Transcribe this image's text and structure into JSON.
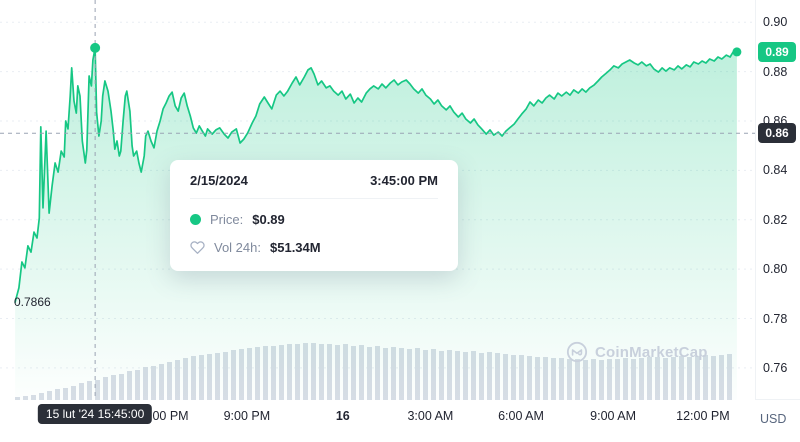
{
  "colors": {
    "accent_green": "#16c784",
    "badge_dark": "#2b2f38",
    "text_primary": "#222531",
    "text_secondary": "#808a9d",
    "gridline": "#e9edf3",
    "volume_bar": "#d8dde6",
    "watermark": "#c8d0dc",
    "crosshair": "#9aa3b3"
  },
  "tooltip": {
    "date": "2/15/2024",
    "time": "3:45:00 PM",
    "price_label": "Price:",
    "price_value": "$0.89",
    "vol_label": "Vol 24h:",
    "vol_value": "$51.34M"
  },
  "badges": {
    "current_price": "0.89",
    "hover_price": "0.86",
    "hover_time": "15 lut '24 15:45:00"
  },
  "axis": {
    "currency": "USD"
  },
  "annotations": {
    "low_label": "0.7866"
  },
  "watermark": {
    "text": "CoinMarketCap"
  },
  "chart_data": {
    "type": "line",
    "ylabel": "Price (USD)",
    "xlabel": "Time",
    "ylim": [
      0.747,
      0.909
    ],
    "grid": "dotted-horizontal",
    "legend": "none",
    "y_axis": {
      "ticks": [
        {
          "label": "0.90",
          "price": 0.9
        },
        {
          "label": "0.88",
          "price": 0.88
        },
        {
          "label": "0.86",
          "price": 0.86
        },
        {
          "label": "0.84",
          "price": 0.84
        },
        {
          "label": "0.82",
          "price": 0.82
        },
        {
          "label": "0.80",
          "price": 0.8
        },
        {
          "label": "0.78",
          "price": 0.78
        },
        {
          "label": "0.76",
          "price": 0.76
        }
      ]
    },
    "x_axis": {
      "labels": [
        {
          "label": "6:00 PM",
          "x_pct": 21.9,
          "bold": false
        },
        {
          "label": "9:00 PM",
          "x_pct": 32.7,
          "bold": false
        },
        {
          "label": "16",
          "x_pct": 45.4,
          "bold": true
        },
        {
          "label": "3:00 AM",
          "x_pct": 57.0,
          "bold": false
        },
        {
          "label": "6:00 AM",
          "x_pct": 69.0,
          "bold": false
        },
        {
          "label": "9:00 AM",
          "x_pct": 81.2,
          "bold": false
        },
        {
          "label": "12:00 PM",
          "x_pct": 93.1,
          "bold": false
        }
      ]
    },
    "crosshair": {
      "x_pct": 12.6,
      "price_at_cursor": 0.855,
      "hover_point_price": 0.8896
    },
    "end_point": {
      "x_pct": 97.6,
      "price": 0.888
    },
    "low_annotation": {
      "x_pct": 2.0,
      "price": 0.7866
    },
    "series": [
      {
        "name": "price",
        "unit": "USD",
        "points": [
          [
            2.0,
            0.7866
          ],
          [
            2.5,
            0.7924
          ],
          [
            2.9,
            0.8029
          ],
          [
            3.3,
            0.8005
          ],
          [
            3.7,
            0.8094
          ],
          [
            4.1,
            0.8069
          ],
          [
            4.5,
            0.815
          ],
          [
            4.9,
            0.8126
          ],
          [
            5.2,
            0.8207
          ],
          [
            5.4,
            0.8576
          ],
          [
            5.7,
            0.8248
          ],
          [
            6.1,
            0.8559
          ],
          [
            6.5,
            0.8227
          ],
          [
            6.9,
            0.8337
          ],
          [
            7.3,
            0.843
          ],
          [
            7.7,
            0.8393
          ],
          [
            8.1,
            0.8478
          ],
          [
            8.5,
            0.8454
          ],
          [
            8.7,
            0.86
          ],
          [
            9.0,
            0.8568
          ],
          [
            9.3,
            0.8701
          ],
          [
            9.5,
            0.8815
          ],
          [
            9.8,
            0.8681
          ],
          [
            10.1,
            0.8632
          ],
          [
            10.3,
            0.8742
          ],
          [
            10.6,
            0.8701
          ],
          [
            10.9,
            0.8519
          ],
          [
            11.3,
            0.843
          ],
          [
            11.5,
            0.8483
          ],
          [
            11.8,
            0.8782
          ],
          [
            12.1,
            0.8742
          ],
          [
            12.3,
            0.8847
          ],
          [
            12.6,
            0.8896
          ],
          [
            12.8,
            0.8636
          ],
          [
            13.1,
            0.8539
          ],
          [
            13.4,
            0.86
          ],
          [
            13.6,
            0.8701
          ],
          [
            13.9,
            0.8762
          ],
          [
            14.3,
            0.8721
          ],
          [
            14.7,
            0.864
          ],
          [
            15.0,
            0.8559
          ],
          [
            15.2,
            0.8486
          ],
          [
            15.5,
            0.8519
          ],
          [
            15.8,
            0.8458
          ],
          [
            16.0,
            0.8478
          ],
          [
            16.3,
            0.86
          ],
          [
            16.6,
            0.8701
          ],
          [
            16.8,
            0.8721
          ],
          [
            17.2,
            0.864
          ],
          [
            17.5,
            0.8499
          ],
          [
            17.7,
            0.8458
          ],
          [
            18.1,
            0.8478
          ],
          [
            18.4,
            0.843
          ],
          [
            18.7,
            0.8393
          ],
          [
            19.1,
            0.8458
          ],
          [
            19.3,
            0.8539
          ],
          [
            19.6,
            0.8559
          ],
          [
            20.0,
            0.8519
          ],
          [
            20.4,
            0.8491
          ],
          [
            20.8,
            0.8559
          ],
          [
            21.2,
            0.86
          ],
          [
            21.6,
            0.8649
          ],
          [
            22.0,
            0.8673
          ],
          [
            22.4,
            0.8701
          ],
          [
            22.8,
            0.8717
          ],
          [
            23.2,
            0.8661
          ],
          [
            23.6,
            0.864
          ],
          [
            24.0,
            0.8693
          ],
          [
            24.4,
            0.8713
          ],
          [
            24.8,
            0.8661
          ],
          [
            25.2,
            0.862
          ],
          [
            25.6,
            0.8572
          ],
          [
            26.0,
            0.8551
          ],
          [
            26.4,
            0.858
          ],
          [
            26.8,
            0.8559
          ],
          [
            27.2,
            0.8539
          ],
          [
            27.5,
            0.8568
          ],
          [
            28.1,
            0.8547
          ],
          [
            28.6,
            0.8564
          ],
          [
            29.1,
            0.8572
          ],
          [
            29.7,
            0.8547
          ],
          [
            30.2,
            0.8531
          ],
          [
            30.7,
            0.8555
          ],
          [
            31.3,
            0.8568
          ],
          [
            31.8,
            0.8511
          ],
          [
            32.3,
            0.8527
          ],
          [
            32.8,
            0.8551
          ],
          [
            33.4,
            0.8592
          ],
          [
            33.9,
            0.862
          ],
          [
            34.4,
            0.8669
          ],
          [
            35.0,
            0.8697
          ],
          [
            35.5,
            0.8673
          ],
          [
            36.0,
            0.8649
          ],
          [
            36.6,
            0.8705
          ],
          [
            37.1,
            0.8721
          ],
          [
            37.6,
            0.8701
          ],
          [
            38.1,
            0.8721
          ],
          [
            38.7,
            0.8754
          ],
          [
            39.2,
            0.8778
          ],
          [
            39.7,
            0.8746
          ],
          [
            40.3,
            0.8778
          ],
          [
            40.8,
            0.8807
          ],
          [
            41.2,
            0.8815
          ],
          [
            41.6,
            0.879
          ],
          [
            42.1,
            0.8746
          ],
          [
            42.6,
            0.8762
          ],
          [
            43.2,
            0.8734
          ],
          [
            43.7,
            0.8742
          ],
          [
            44.2,
            0.8721
          ],
          [
            44.8,
            0.8705
          ],
          [
            45.3,
            0.8721
          ],
          [
            45.8,
            0.8689
          ],
          [
            46.4,
            0.8709
          ],
          [
            46.9,
            0.8673
          ],
          [
            47.4,
            0.8693
          ],
          [
            47.9,
            0.8677
          ],
          [
            48.5,
            0.8713
          ],
          [
            49.0,
            0.873
          ],
          [
            49.5,
            0.8742
          ],
          [
            50.1,
            0.873
          ],
          [
            50.6,
            0.875
          ],
          [
            51.1,
            0.8734
          ],
          [
            51.7,
            0.8754
          ],
          [
            52.2,
            0.8766
          ],
          [
            52.7,
            0.8746
          ],
          [
            53.2,
            0.8758
          ],
          [
            53.8,
            0.8766
          ],
          [
            54.3,
            0.875
          ],
          [
            54.8,
            0.873
          ],
          [
            55.4,
            0.8713
          ],
          [
            55.9,
            0.873
          ],
          [
            56.4,
            0.8705
          ],
          [
            57.0,
            0.8689
          ],
          [
            57.5,
            0.8669
          ],
          [
            58.0,
            0.8685
          ],
          [
            58.5,
            0.8661
          ],
          [
            59.1,
            0.8645
          ],
          [
            59.6,
            0.8661
          ],
          [
            60.1,
            0.8636
          ],
          [
            60.7,
            0.8616
          ],
          [
            61.2,
            0.8632
          ],
          [
            61.7,
            0.8608
          ],
          [
            62.3,
            0.8592
          ],
          [
            62.8,
            0.8608
          ],
          [
            63.3,
            0.8584
          ],
          [
            63.8,
            0.8568
          ],
          [
            64.4,
            0.8547
          ],
          [
            64.9,
            0.8564
          ],
          [
            65.4,
            0.8543
          ],
          [
            66.0,
            0.8555
          ],
          [
            66.5,
            0.8539
          ],
          [
            67.0,
            0.8559
          ],
          [
            67.5,
            0.8572
          ],
          [
            68.1,
            0.8588
          ],
          [
            68.6,
            0.8608
          ],
          [
            69.1,
            0.8628
          ],
          [
            69.7,
            0.8649
          ],
          [
            70.2,
            0.8677
          ],
          [
            70.7,
            0.8661
          ],
          [
            71.3,
            0.8685
          ],
          [
            71.8,
            0.8673
          ],
          [
            72.3,
            0.8693
          ],
          [
            72.8,
            0.8705
          ],
          [
            73.4,
            0.8689
          ],
          [
            73.9,
            0.8713
          ],
          [
            74.4,
            0.8701
          ],
          [
            75.0,
            0.8717
          ],
          [
            75.5,
            0.8705
          ],
          [
            76.0,
            0.8726
          ],
          [
            76.6,
            0.8713
          ],
          [
            77.1,
            0.873
          ],
          [
            77.6,
            0.8717
          ],
          [
            78.1,
            0.8734
          ],
          [
            78.7,
            0.8746
          ],
          [
            79.2,
            0.8762
          ],
          [
            79.7,
            0.8778
          ],
          [
            80.3,
            0.8794
          ],
          [
            80.8,
            0.8807
          ],
          [
            81.3,
            0.8823
          ],
          [
            81.9,
            0.8815
          ],
          [
            82.4,
            0.8831
          ],
          [
            82.9,
            0.8839
          ],
          [
            83.4,
            0.8847
          ],
          [
            84.0,
            0.8835
          ],
          [
            84.5,
            0.8827
          ],
          [
            85.0,
            0.8839
          ],
          [
            85.6,
            0.8823
          ],
          [
            86.1,
            0.8831
          ],
          [
            86.6,
            0.8811
          ],
          [
            87.2,
            0.8798
          ],
          [
            87.7,
            0.8815
          ],
          [
            88.2,
            0.8802
          ],
          [
            88.7,
            0.8815
          ],
          [
            89.3,
            0.8807
          ],
          [
            89.8,
            0.8823
          ],
          [
            90.3,
            0.8811
          ],
          [
            90.9,
            0.8827
          ],
          [
            91.4,
            0.8819
          ],
          [
            91.9,
            0.8839
          ],
          [
            92.5,
            0.8831
          ],
          [
            93.0,
            0.8843
          ],
          [
            93.5,
            0.8835
          ],
          [
            94.0,
            0.8851
          ],
          [
            94.6,
            0.8843
          ],
          [
            95.1,
            0.8859
          ],
          [
            95.6,
            0.8851
          ],
          [
            96.2,
            0.8867
          ],
          [
            96.7,
            0.8859
          ],
          [
            97.1,
            0.8879
          ],
          [
            97.6,
            0.888
          ]
        ]
      }
    ],
    "volume": {
      "bar_heights": [
        3,
        4,
        5,
        7,
        9,
        11,
        12,
        14,
        17,
        19,
        20,
        23,
        25,
        26,
        29,
        30,
        33,
        34,
        36,
        38,
        40,
        42,
        44,
        45,
        46,
        47,
        48,
        50,
        51,
        52,
        53,
        54,
        54,
        55,
        56,
        56,
        57,
        57,
        56,
        56,
        55,
        56,
        54,
        55,
        53,
        54,
        52,
        53,
        52,
        51,
        52,
        50,
        51,
        49,
        50,
        49,
        48,
        49,
        47,
        48,
        47,
        46,
        45,
        45,
        44,
        43,
        43,
        42,
        42,
        41,
        41,
        40,
        41,
        40,
        41,
        41,
        42,
        41,
        42,
        43,
        43,
        42,
        43,
        44,
        43,
        44,
        45,
        44,
        45,
        46
      ]
    }
  }
}
